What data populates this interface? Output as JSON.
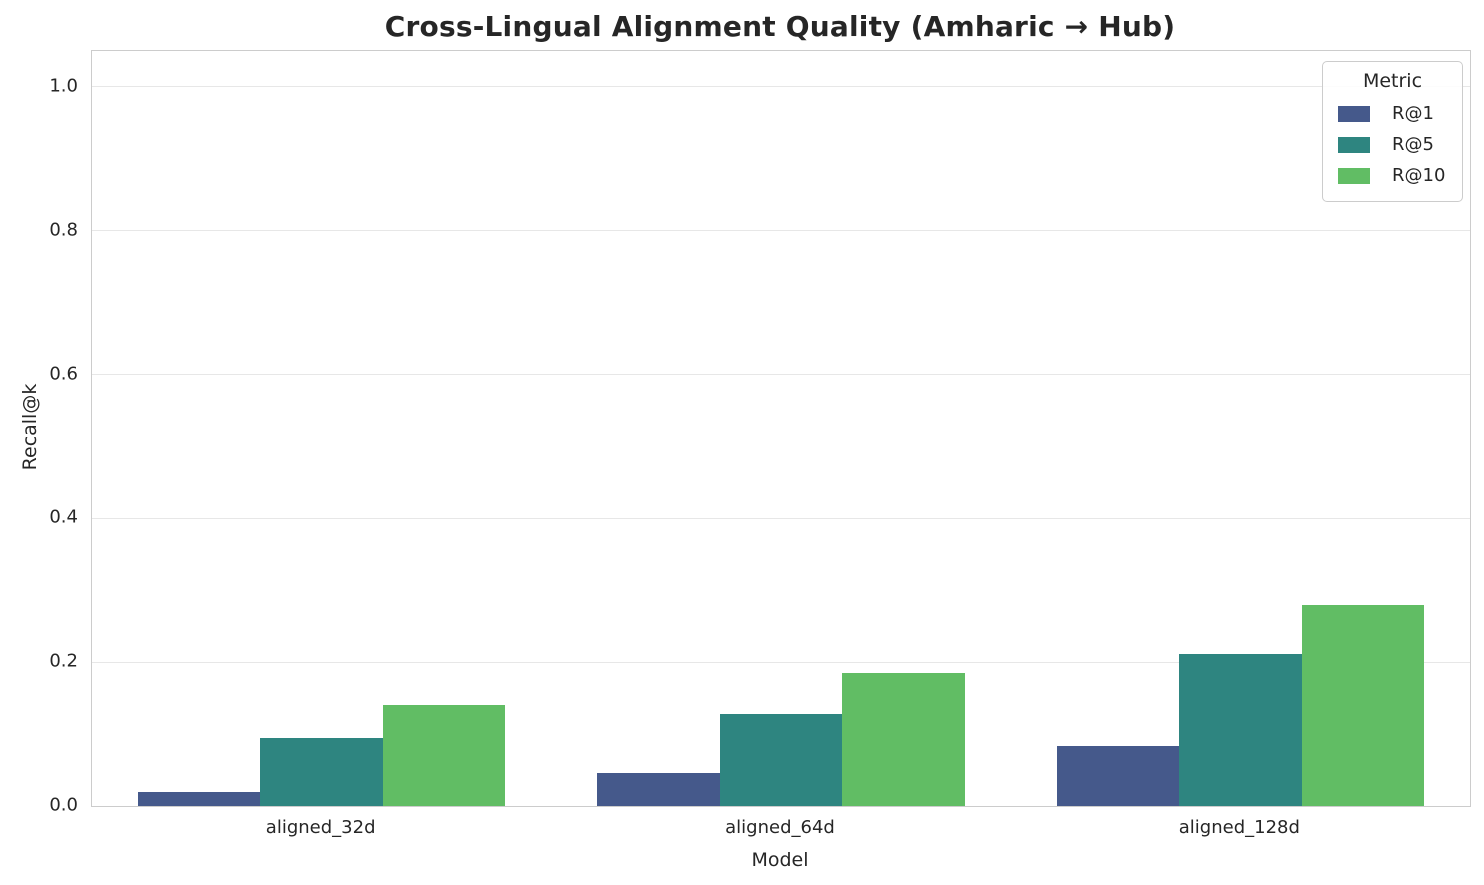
{
  "chart_data": {
    "type": "bar",
    "title": "Cross-Lingual Alignment Quality (Amharic → Hub)",
    "xlabel": "Model",
    "ylabel": "Recall@k",
    "categories": [
      "aligned_32d",
      "aligned_64d",
      "aligned_128d"
    ],
    "series": [
      {
        "name": "R@1",
        "color": "#45598b",
        "values": [
          0.02,
          0.046,
          0.083
        ]
      },
      {
        "name": "R@5",
        "color": "#2e8580",
        "values": [
          0.094,
          0.128,
          0.212
        ]
      },
      {
        "name": "R@10",
        "color": "#61bd64",
        "values": [
          0.141,
          0.185,
          0.28
        ]
      }
    ],
    "ylim": [
      0,
      1.05
    ],
    "yticks": [
      0.0,
      0.2,
      0.4,
      0.6,
      0.8,
      1.0
    ],
    "grid": true,
    "legend": {
      "title": "Metric",
      "position": "upper right",
      "entries": [
        "R@1",
        "R@5",
        "R@10"
      ]
    }
  },
  "style": {
    "background": "#ffffff",
    "text_color": "#262626",
    "grid_color": "#e7e7e7",
    "spine_color": "#cccccc"
  }
}
